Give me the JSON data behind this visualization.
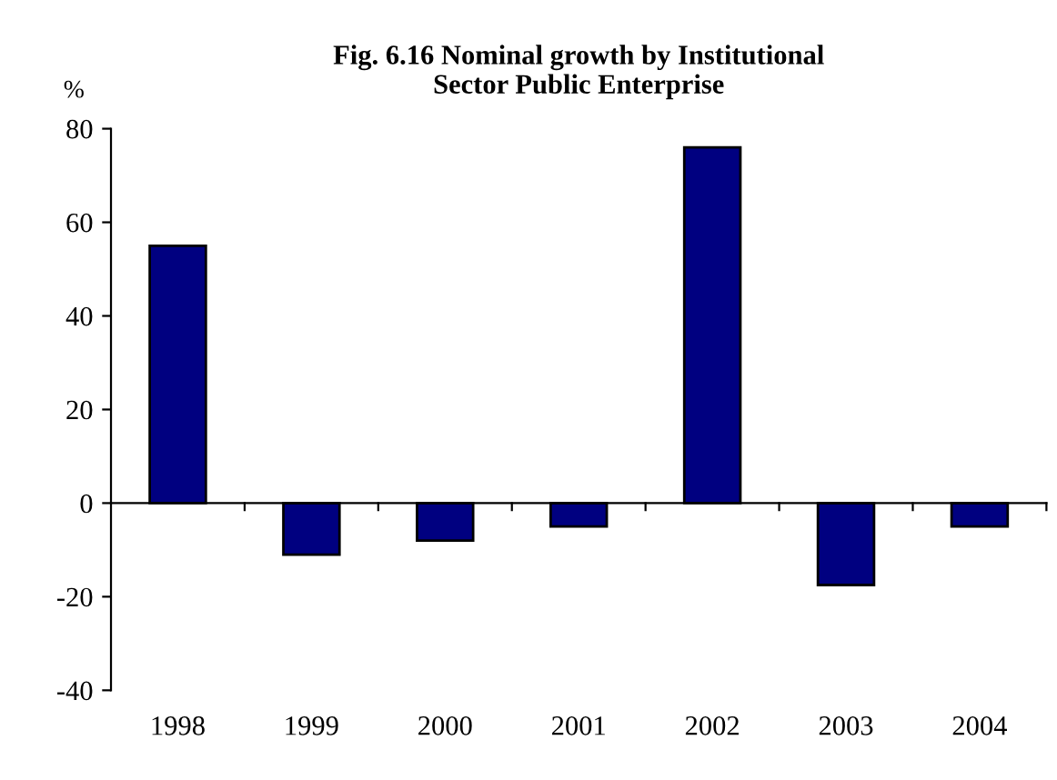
{
  "chart_data": {
    "type": "bar",
    "title": "Fig. 6.16 Nominal growth by Institutional\nSector Public Enterprise",
    "ylabel": "%",
    "categories": [
      "1998",
      "1999",
      "2000",
      "2001",
      "2002",
      "2003",
      "2004"
    ],
    "values": [
      55,
      -11,
      -8,
      -5,
      76,
      -17.5,
      -5
    ],
    "color": "#000080",
    "ylim": [
      -40,
      80
    ],
    "yticks": [
      -40,
      -20,
      0,
      20,
      40,
      60,
      80
    ],
    "legend": false
  }
}
